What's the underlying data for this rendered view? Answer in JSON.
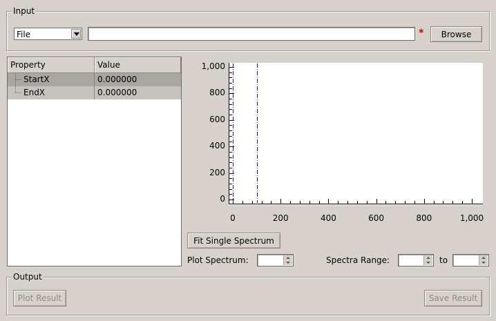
{
  "input_group": {
    "title": "Input",
    "source_combo": {
      "selected": "File"
    },
    "file_path": {
      "value": ""
    },
    "required_marker": "*",
    "browse_label": "Browse"
  },
  "property_table": {
    "headers": [
      "Property",
      "Value"
    ],
    "rows": [
      {
        "property": "StartX",
        "value": "0.000000"
      },
      {
        "property": "EndX",
        "value": "0.000000"
      }
    ]
  },
  "chart_data": {
    "type": "line",
    "x_range": [
      0,
      1000
    ],
    "y_range": [
      0,
      1000
    ],
    "x_ticks": [
      "0",
      "200",
      "400",
      "600",
      "800",
      "1,000"
    ],
    "y_ticks": [
      "0",
      "200",
      "400",
      "600",
      "800",
      "1,000"
    ],
    "range_markers": [
      0,
      100
    ],
    "series": []
  },
  "controls": {
    "fit_single_label": "Fit Single Spectrum",
    "plot_spectrum_label": "Plot Spectrum:",
    "plot_spectrum_value": "",
    "spectra_range_label": "Spectra Range:",
    "range_from": "",
    "to_label": "to",
    "range_to": ""
  },
  "output_group": {
    "title": "Output",
    "plot_result_label": "Plot Result",
    "save_result_label": "Save Result"
  },
  "colors": {
    "window_bg": "#d6d2cb",
    "marker": "#1a1a8c",
    "required": "#cc0000"
  }
}
